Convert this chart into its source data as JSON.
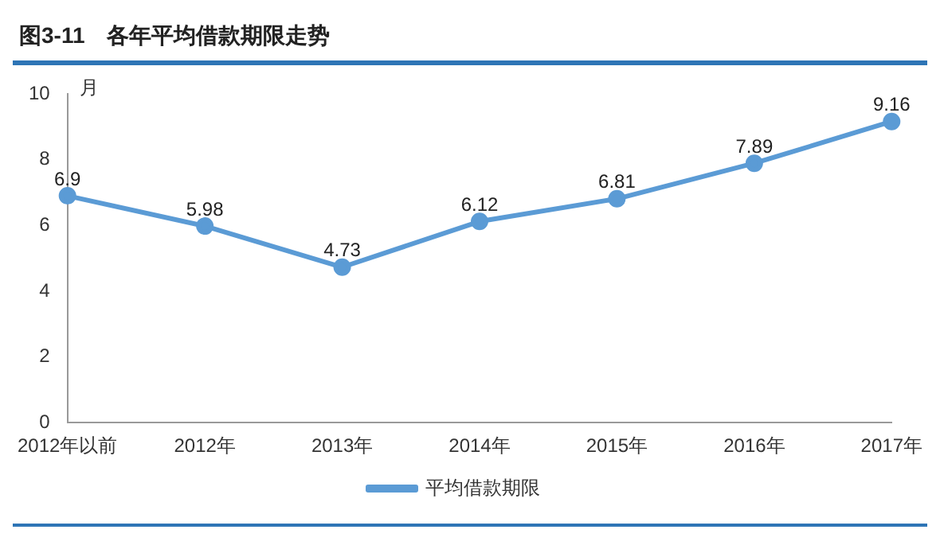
{
  "chart_data": {
    "type": "line",
    "title": "图3-11　各年平均借款期限走势",
    "ylabel": "月",
    "categories": [
      "2012年以前",
      "2012年",
      "2013年",
      "2014年",
      "2015年",
      "2016年",
      "2017年"
    ],
    "series": [
      {
        "name": "平均借款期限",
        "color": "#5b9bd5",
        "values": [
          6.9,
          5.98,
          4.73,
          6.12,
          6.81,
          7.89,
          9.16
        ]
      }
    ],
    "ylim": [
      0,
      10
    ],
    "yticks": [
      0,
      2,
      4,
      6,
      8,
      10
    ],
    "grid": false,
    "legend": "bottom",
    "marker": "circle",
    "line_style": "solid",
    "data_labels": true
  }
}
